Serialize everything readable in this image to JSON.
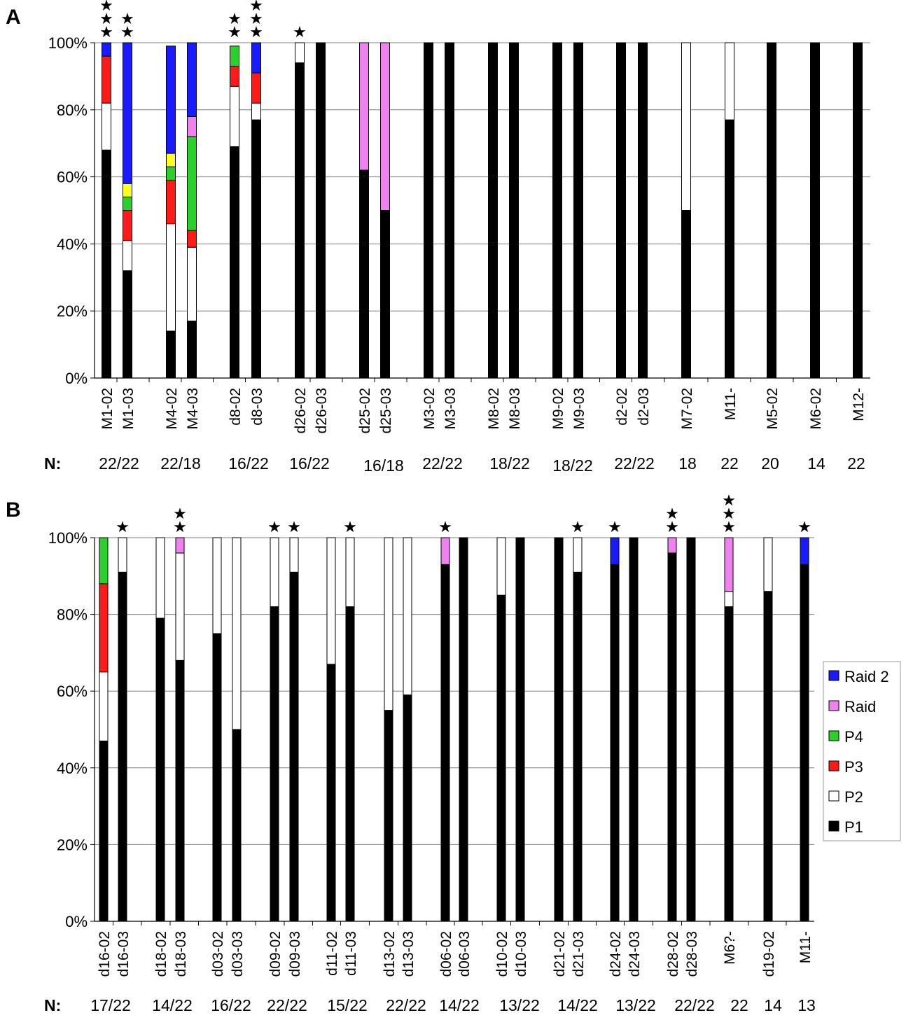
{
  "chart_data": [
    {
      "type": "bar",
      "stacked": true,
      "panel_label": "A",
      "yaxis": {
        "min": 0,
        "max": 100,
        "ticks": [
          "0%",
          "20%",
          "40%",
          "60%",
          "80%",
          "100%"
        ]
      },
      "grid": true,
      "n_prefix": "N:",
      "categories": [
        "M1-02",
        "M1-03",
        "M4-02",
        "M4-03",
        "d8-02",
        "d8-03",
        "d26-02",
        "d26-03",
        "d25-02",
        "d25-03",
        "M3-02",
        "M3-03",
        "M8-02",
        "M8-03",
        "M9-02",
        "M9-03",
        "d2-02",
        "d2-03",
        "M7-02",
        "M11-",
        "M5-02",
        "M6-02",
        "M12-"
      ],
      "stars": [
        3,
        2,
        0,
        0,
        2,
        3,
        1,
        0,
        0,
        0,
        0,
        0,
        0,
        0,
        0,
        0,
        0,
        0,
        0,
        0,
        0,
        0,
        0
      ],
      "series": [
        {
          "name": "P1",
          "values": [
            68,
            32,
            14,
            17,
            69,
            77,
            94,
            100,
            62,
            50,
            100,
            100,
            100,
            100,
            100,
            100,
            100,
            100,
            50,
            77,
            100,
            100,
            100
          ]
        },
        {
          "name": "P2",
          "values": [
            14,
            9,
            32,
            22,
            18,
            5,
            6,
            0,
            0,
            0,
            0,
            0,
            0,
            0,
            0,
            0,
            0,
            0,
            50,
            23,
            0,
            0,
            0
          ]
        },
        {
          "name": "P3",
          "values": [
            14,
            9,
            13,
            5,
            6,
            9,
            0,
            0,
            0,
            0,
            0,
            0,
            0,
            0,
            0,
            0,
            0,
            0,
            0,
            0,
            0,
            0,
            0
          ]
        },
        {
          "name": "P4",
          "values": [
            0,
            4,
            4,
            28,
            6,
            0,
            0,
            0,
            0,
            0,
            0,
            0,
            0,
            0,
            0,
            0,
            0,
            0,
            0,
            0,
            0,
            0,
            0
          ]
        },
        {
          "name": "P5",
          "values": [
            0,
            4,
            4,
            0,
            0,
            0,
            0,
            0,
            0,
            0,
            0,
            0,
            0,
            0,
            0,
            0,
            0,
            0,
            0,
            0,
            0,
            0,
            0
          ]
        },
        {
          "name": "Raid",
          "values": [
            0,
            0,
            0,
            6,
            0,
            0,
            0,
            0,
            38,
            50,
            0,
            0,
            0,
            0,
            0,
            0,
            0,
            0,
            0,
            0,
            0,
            0,
            0
          ]
        },
        {
          "name": "Raid 2",
          "values": [
            4,
            42,
            32,
            22,
            0,
            9,
            0,
            0,
            0,
            0,
            0,
            0,
            0,
            0,
            0,
            0,
            0,
            0,
            0,
            0,
            0,
            0,
            0
          ]
        }
      ],
      "n_labels": [
        "22/22",
        "22/18",
        "16/22",
        "16/22",
        "16/18",
        "22/22",
        "18/22",
        "18/22",
        "22/22",
        "18",
        "22",
        "20",
        "14",
        "22"
      ]
    },
    {
      "type": "bar",
      "stacked": true,
      "panel_label": "B",
      "yaxis": {
        "min": 0,
        "max": 100,
        "ticks": [
          "0%",
          "20%",
          "40%",
          "60%",
          "80%",
          "100%"
        ]
      },
      "grid": true,
      "n_prefix": "N:",
      "categories": [
        "d16-02",
        "d16-03",
        "d18-02",
        "d18-03",
        "d03-02",
        "d03-03",
        "d09-02",
        "d09-03",
        "d11-02",
        "d11-03",
        "d13-02",
        "d13-03",
        "d06-02",
        "d06-03",
        "d10-02",
        "d10-03",
        "d21-02",
        "d21-03",
        "d24-02",
        "d24-03",
        "d28-02",
        "d28-03",
        "M6?-",
        "d19-02",
        "M11-"
      ],
      "stars": [
        0,
        1,
        0,
        2,
        0,
        0,
        1,
        1,
        0,
        1,
        0,
        0,
        1,
        0,
        0,
        0,
        0,
        1,
        1,
        0,
        2,
        0,
        3,
        0,
        1
      ],
      "series": [
        {
          "name": "P1",
          "values": [
            47,
            91,
            79,
            68,
            75,
            50,
            82,
            91,
            67,
            82,
            55,
            59,
            93,
            100,
            85,
            100,
            100,
            91,
            93,
            100,
            96,
            100,
            82,
            86,
            93
          ]
        },
        {
          "name": "P2",
          "values": [
            18,
            9,
            21,
            28,
            25,
            50,
            18,
            9,
            33,
            18,
            45,
            41,
            0,
            0,
            15,
            0,
            0,
            9,
            0,
            0,
            0,
            0,
            4,
            14,
            0
          ]
        },
        {
          "name": "P3",
          "values": [
            23,
            0,
            0,
            0,
            0,
            0,
            0,
            0,
            0,
            0,
            0,
            0,
            0,
            0,
            0,
            0,
            0,
            0,
            0,
            0,
            0,
            0,
            0,
            0,
            0
          ]
        },
        {
          "name": "P4",
          "values": [
            12,
            0,
            0,
            0,
            0,
            0,
            0,
            0,
            0,
            0,
            0,
            0,
            0,
            0,
            0,
            0,
            0,
            0,
            0,
            0,
            0,
            0,
            0,
            0,
            0
          ]
        },
        {
          "name": "Raid",
          "values": [
            0,
            0,
            0,
            4,
            0,
            0,
            0,
            0,
            0,
            0,
            0,
            0,
            7,
            0,
            0,
            0,
            0,
            0,
            0,
            0,
            4,
            0,
            14,
            0,
            0
          ]
        },
        {
          "name": "Raid 2",
          "values": [
            0,
            0,
            0,
            0,
            0,
            0,
            0,
            0,
            0,
            0,
            0,
            0,
            0,
            0,
            0,
            0,
            0,
            0,
            7,
            0,
            0,
            0,
            0,
            0,
            7
          ]
        }
      ],
      "n_labels": [
        "17/22",
        "14/22",
        "16/22",
        "22/22",
        "15/22",
        "22/22",
        "14/22",
        "13/22",
        "14/22",
        "13/22",
        "22/22",
        "22",
        "14",
        "13"
      ],
      "legend": {
        "placement": "right",
        "items": [
          {
            "label": "Raid 2",
            "color": "#1a1aff"
          },
          {
            "label": "Raid",
            "color": "#ee82ee"
          },
          {
            "label": "P4",
            "color": "#2bd02b"
          },
          {
            "label": "P3",
            "color": "#ff1a1a"
          },
          {
            "label": "P2",
            "color": "#ffffff"
          },
          {
            "label": "P1",
            "color": "#000000"
          }
        ]
      }
    }
  ],
  "colors": {
    "P1": "#000000",
    "P2": "#ffffff",
    "P3": "#ff1a1a",
    "P4": "#2bd02b",
    "P5": "#ffff22",
    "Raid": "#ee82ee",
    "Raid 2": "#1a1aff"
  },
  "star_glyph": "★"
}
